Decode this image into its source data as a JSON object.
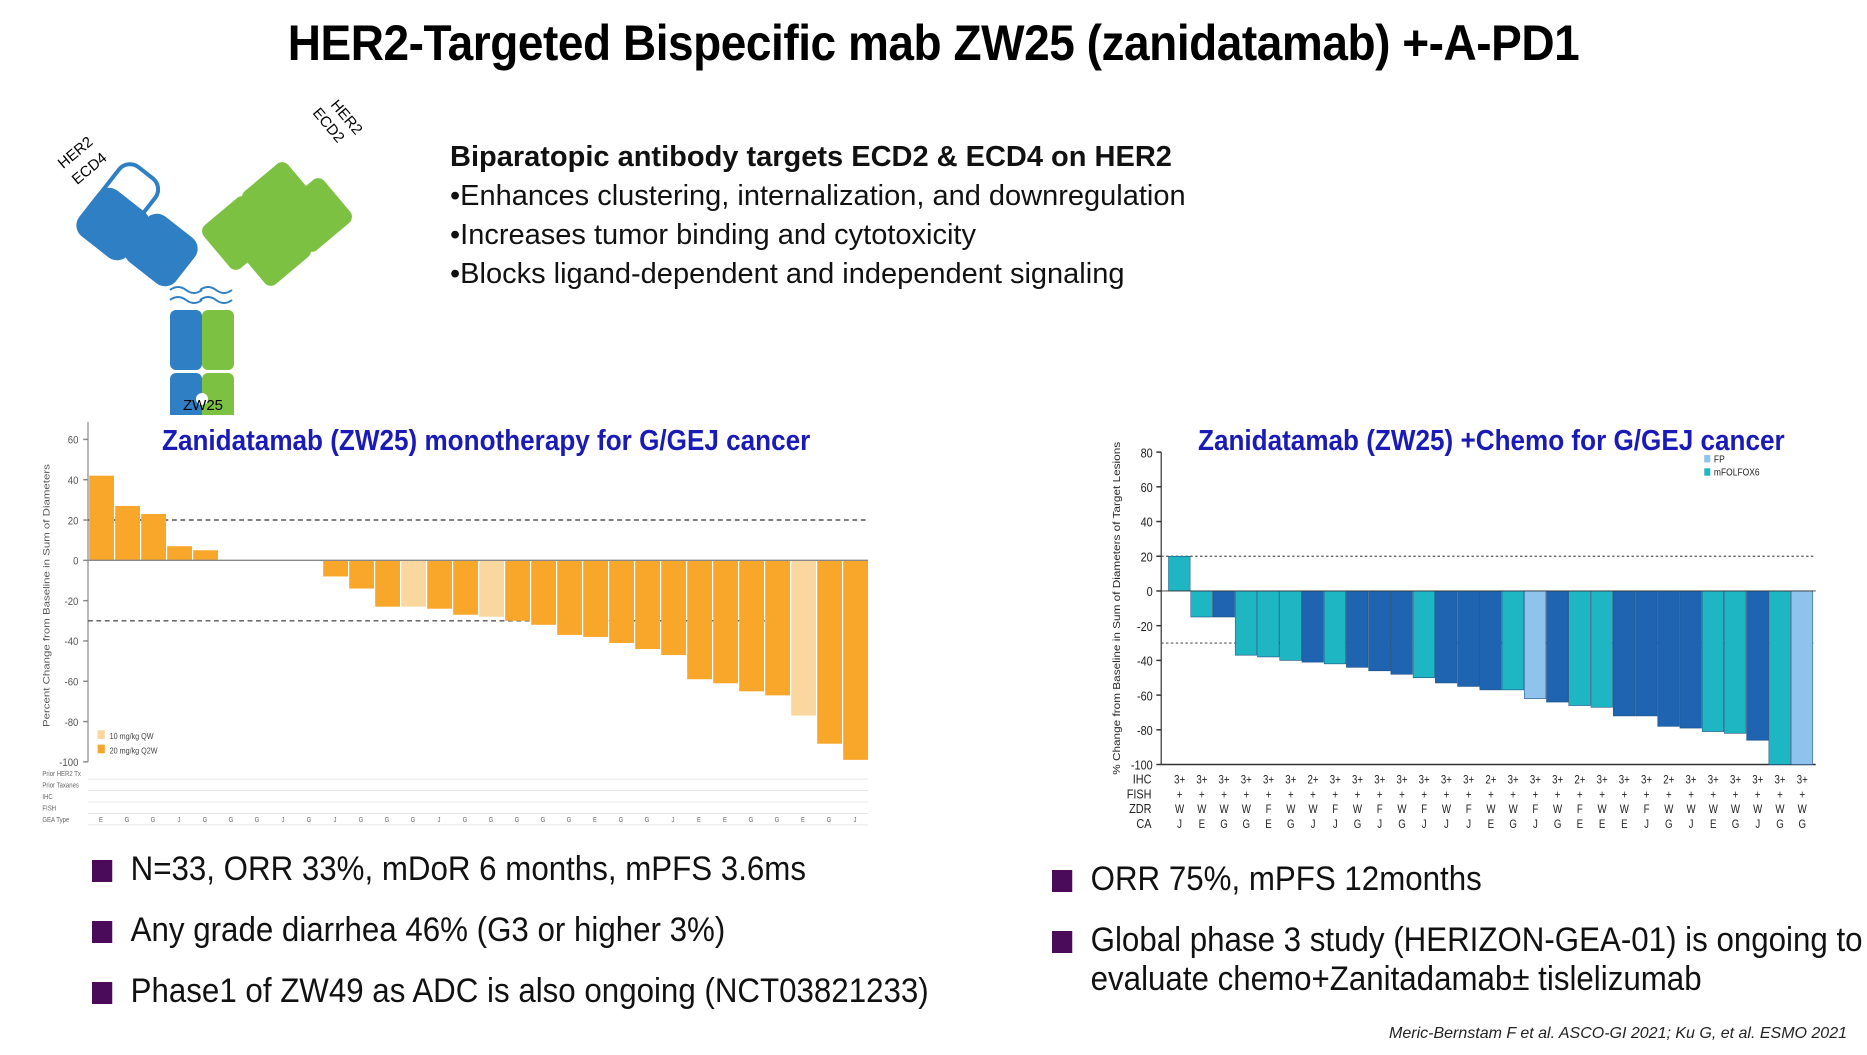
{
  "title": "HER2-Targeted Bispecific mab ZW25 (zanidatamab) +-A-PD1",
  "intro": {
    "heading": "Biparatopic antibody targets ECD2 & ECD4 on HER2",
    "points": [
      "•Enhances clustering, internalization, and downregulation",
      "•Increases tumor binding and cytotoxicity",
      "•Blocks ligand-dependent and independent signaling"
    ]
  },
  "antibody": {
    "label_left_1": "HER2",
    "label_left_2": "ECD4",
    "label_right_1": "HER2",
    "label_right_2": "ECD2",
    "name": "ZW25",
    "colors": {
      "blue": "#2f7fc4",
      "green": "#7cc142"
    }
  },
  "chart_left": {
    "title": "Zanidatamab (ZW25) monotherapy for G/GEJ cancer",
    "colors": {
      "q3w": "#fbd7a0",
      "q2w": "#f9a72b"
    },
    "row_labels": [
      "Prior HER2 Tx",
      "Prior Taxanes",
      "IHC",
      "FISH",
      "GEA Type"
    ]
  },
  "chart_right": {
    "title": "Zanidatamab (ZW25) +Chemo for G/GEJ cancer",
    "colors": {
      "FP": "#8ec3ee",
      "mFOLFOX6": "#1fb6c4",
      "dark": "#1f64b0"
    },
    "row_labels": [
      "IHC",
      "FISH",
      "ZDR",
      "CA"
    ]
  },
  "chart_data": [
    {
      "type": "bar",
      "title": "Zanidatamab (ZW25) monotherapy for G/GEJ cancer",
      "ylabel": "Percent Change from Baseline in Sum of Diameters",
      "ylim": [
        -100,
        65
      ],
      "yticks": [
        60,
        40,
        20,
        0,
        -20,
        -40,
        -60,
        -80,
        -100
      ],
      "reference_lines": [
        20,
        -30
      ],
      "legend": [
        "10 mg/kg QW",
        "20 mg/kg Q2W"
      ],
      "values": [
        42,
        27,
        23,
        7,
        5,
        0,
        0,
        0,
        0,
        -8,
        -14,
        -23,
        -23,
        -24,
        -27,
        -28,
        -30,
        -32,
        -37,
        -38,
        -41,
        -44,
        -47,
        -59,
        -61,
        -65,
        -67,
        -77,
        -91,
        -99
      ],
      "dose": [
        "20 mg/kg Q2W",
        "20 mg/kg Q2W",
        "20 mg/kg Q2W",
        "20 mg/kg Q2W",
        "20 mg/kg Q2W",
        "20 mg/kg Q2W",
        "20 mg/kg Q2W",
        "20 mg/kg Q2W",
        "20 mg/kg Q2W",
        "20 mg/kg Q2W",
        "20 mg/kg Q2W",
        "20 mg/kg Q2W",
        "10 mg/kg QW",
        "20 mg/kg Q2W",
        "20 mg/kg Q2W",
        "10 mg/kg QW",
        "20 mg/kg Q2W",
        "20 mg/kg Q2W",
        "20 mg/kg Q2W",
        "20 mg/kg Q2W",
        "20 mg/kg Q2W",
        "20 mg/kg Q2W",
        "20 mg/kg Q2W",
        "20 mg/kg Q2W",
        "20 mg/kg Q2W",
        "20 mg/kg Q2W",
        "20 mg/kg Q2W",
        "10 mg/kg QW",
        "20 mg/kg Q2W",
        "20 mg/kg Q2W"
      ],
      "gea_type": [
        "E",
        "G",
        "G",
        "J",
        "G",
        "G",
        "G",
        "J",
        "G",
        "J",
        "G",
        "G",
        "G",
        "J",
        "G",
        "G",
        "G",
        "G",
        "G",
        "E",
        "G",
        "G",
        "J",
        "E",
        "E",
        "G",
        "G",
        "E",
        "G",
        "J"
      ]
    },
    {
      "type": "bar",
      "title": "Zanidatamab (ZW25) +Chemo for G/GEJ cancer",
      "ylabel": "% Change from Baseline in Sum of Diameters of Target Lesions",
      "ylim": [
        -100,
        80
      ],
      "yticks": [
        80,
        60,
        40,
        20,
        0,
        -20,
        -40,
        -60,
        -80,
        -100
      ],
      "reference_lines": [
        20,
        -30
      ],
      "legend": [
        "FP",
        "mFOLFOX6"
      ],
      "values": [
        20,
        -15,
        -15,
        -37,
        -38,
        -40,
        -41,
        -42,
        -44,
        -46,
        -48,
        -50,
        -53,
        -55,
        -57,
        -57,
        -62,
        -64,
        -66,
        -67,
        -72,
        -72,
        -78,
        -79,
        -81,
        -82,
        -86,
        -100,
        -100
      ],
      "regimen": [
        "mFOLFOX6",
        "mFOLFOX6",
        "dark",
        "mFOLFOX6",
        "mFOLFOX6",
        "mFOLFOX6",
        "dark",
        "mFOLFOX6",
        "dark",
        "dark",
        "dark",
        "mFOLFOX6",
        "dark",
        "dark",
        "dark",
        "mFOLFOX6",
        "FP",
        "dark",
        "mFOLFOX6",
        "mFOLFOX6",
        "dark",
        "dark",
        "dark",
        "dark",
        "mFOLFOX6",
        "mFOLFOX6",
        "dark",
        "mFOLFOX6",
        "FP"
      ],
      "ihc": [
        "3+",
        "3+",
        "3+",
        "3+",
        "3+",
        "3+",
        "2+",
        "3+",
        "3+",
        "3+",
        "3+",
        "3+",
        "3+",
        "3+",
        "2+",
        "3+",
        "3+",
        "3+",
        "2+",
        "3+",
        "3+",
        "3+",
        "2+",
        "3+",
        "3+",
        "3+",
        "3+",
        "3+",
        "3+"
      ],
      "fish": [
        "+",
        "+",
        "+",
        "+",
        "+",
        "+",
        "+",
        "+",
        "+",
        "+",
        "+",
        "+",
        "+",
        "+",
        "+",
        "+",
        "+",
        "+",
        "+",
        "+",
        "+",
        "+",
        "+",
        "+",
        "+",
        "+",
        "+",
        "+",
        "+"
      ],
      "zdr": [
        "W",
        "W",
        "W",
        "W",
        "F",
        "W",
        "W",
        "F",
        "W",
        "F",
        "W",
        "F",
        "W",
        "F",
        "W",
        "W",
        "F",
        "W",
        "F",
        "W",
        "W",
        "F",
        "W",
        "W",
        "W",
        "W",
        "W",
        "W",
        "W"
      ],
      "ca": [
        "J",
        "E",
        "G",
        "G",
        "E",
        "G",
        "J",
        "J",
        "G",
        "J",
        "G",
        "J",
        "J",
        "J",
        "E",
        "G",
        "J",
        "G",
        "E",
        "E",
        "E",
        "J",
        "G",
        "J",
        "E",
        "G",
        "J",
        "G",
        "G"
      ]
    }
  ],
  "bullets_left": [
    "N=33, ORR 33%, mDoR 6 months, mPFS 3.6ms",
    "Any grade diarrhea 46% (G3 or higher 3%)",
    "Phase1 of ZW49 as ADC is also ongoing (NCT03821233)"
  ],
  "bullets_right": [
    "ORR 75%, mPFS 12months",
    "Global phase 3 study (HERIZON-GEA-01) is ongoing to",
    "evaluate chemo+Zanitadamab± tislelizumab"
  ],
  "citation": "Meric-Bernstam F et al. ASCO-GI 2021; Ku G, et al. ESMO 2021"
}
